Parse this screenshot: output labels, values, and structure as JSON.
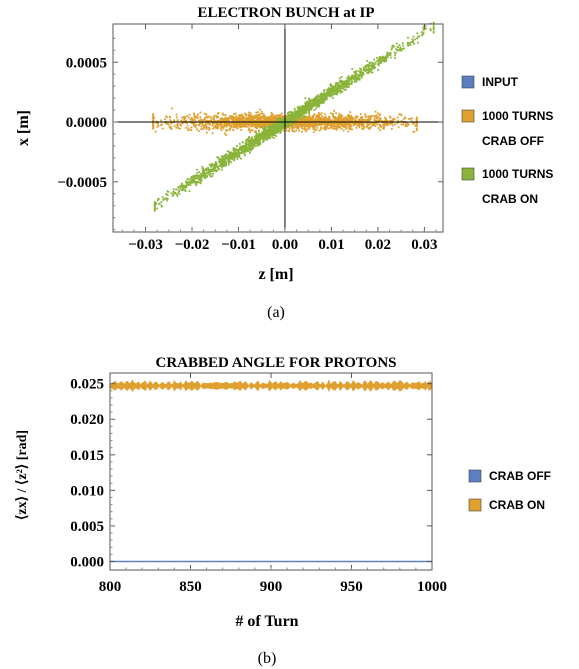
{
  "chart_data": [
    {
      "type": "scatter",
      "title": "ELECTRON BUNCH at IP",
      "xlabel": "z [m]",
      "ylabel": "x [m]",
      "xlim": [
        -0.037,
        0.034
      ],
      "ylim": [
        -0.00092,
        0.00082
      ],
      "xticks": [
        -0.03,
        -0.02,
        -0.01,
        0.0,
        0.01,
        0.02,
        0.03
      ],
      "xtick_labels": [
        "−0.03",
        "−0.02",
        "−0.01",
        "0.00",
        "0.01",
        "0.02",
        "0.03"
      ],
      "yticks": [
        0.0005,
        0.0,
        -0.0005
      ],
      "ytick_labels": [
        "0.0005",
        "0.0000",
        "−0.0005"
      ],
      "grid": false,
      "legend_position": "right",
      "series": [
        {
          "name": "INPUT",
          "color": "#5b7fbf",
          "shape": "horizontal ellipse",
          "z_range": [
            -0.027,
            0.027
          ],
          "x_range": [
            -6e-05,
            6e-05
          ]
        },
        {
          "name": "1000 TURNS\nCRAB OFF",
          "color": "#e0a030",
          "shape": "horizontal ellipse",
          "z_range": [
            -0.027,
            0.027
          ],
          "x_range": [
            -7e-05,
            7e-05
          ]
        },
        {
          "name": "1000 TURNS\nCRAB ON",
          "color": "#8ab43a",
          "shape": "tilted band",
          "z_range": [
            -0.028,
            0.032
          ],
          "x_range": [
            -0.00078,
            0.00078
          ],
          "slope": 0.025
        }
      ],
      "caption": "(a)"
    },
    {
      "type": "line",
      "title": "CRABBED ANGLE FOR PROTONS",
      "xlabel": "# of Turn",
      "ylabel": "⟨zx⟩ / ⟨z²⟩ [rad]",
      "xlim": [
        800,
        1000
      ],
      "ylim": [
        -0.0012,
        0.0265
      ],
      "xticks": [
        800,
        850,
        900,
        950,
        1000
      ],
      "xtick_labels": [
        "800",
        "850",
        "900",
        "950",
        "1000"
      ],
      "yticks": [
        0.0,
        0.005,
        0.01,
        0.015,
        0.02,
        0.025
      ],
      "ytick_labels": [
        "0.000",
        "0.005",
        "0.010",
        "0.015",
        "0.020",
        "0.025"
      ],
      "grid": false,
      "legend_position": "right",
      "series": [
        {
          "name": "CRAB OFF",
          "color": "#5b7fbf",
          "mean": 0.0,
          "spread": 6e-05
        },
        {
          "name": "CRAB ON",
          "color": "#e0a030",
          "mean": 0.0247,
          "spread": 0.0004
        }
      ],
      "caption": "(b)"
    }
  ]
}
